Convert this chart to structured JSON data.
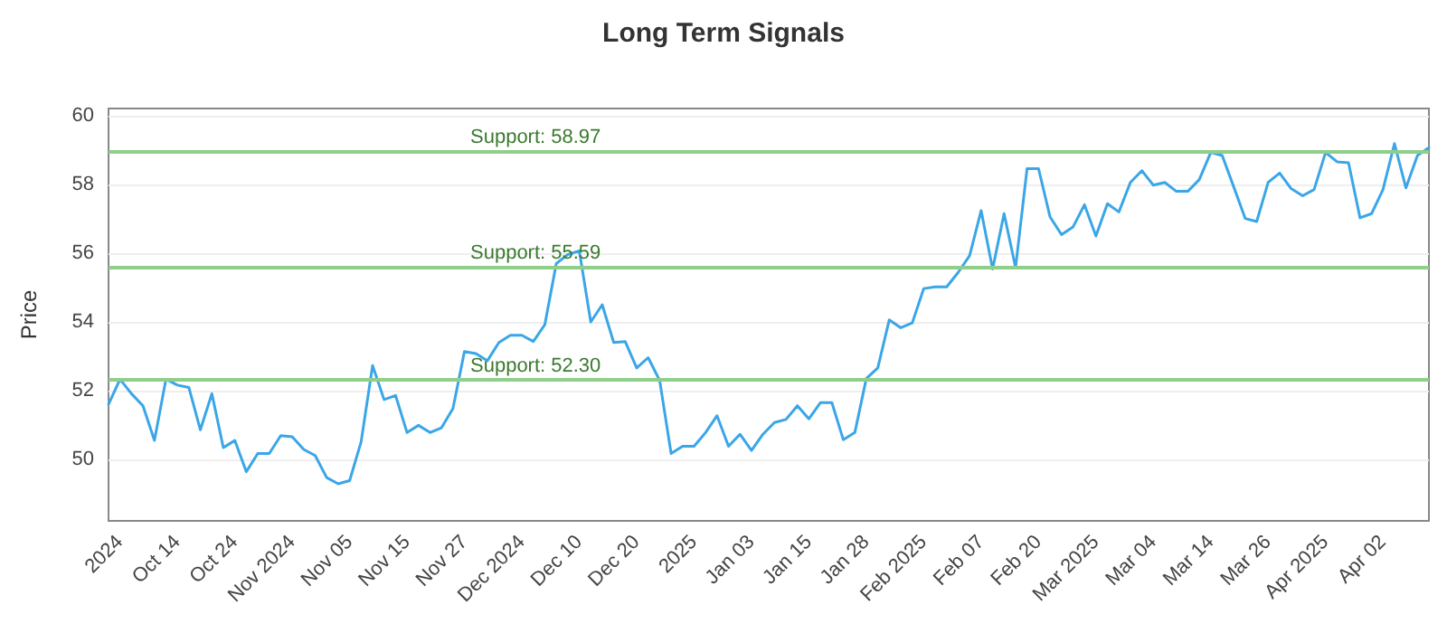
{
  "chart_data": {
    "type": "line",
    "title": "Long Term Signals",
    "ylabel": "Price",
    "categories": [
      null,
      "2024",
      null,
      null,
      null,
      null,
      "Oct 14",
      null,
      null,
      null,
      null,
      "Oct 24",
      null,
      null,
      null,
      null,
      "Nov 2024",
      null,
      null,
      null,
      null,
      "Nov 05",
      null,
      null,
      null,
      null,
      "Nov 15",
      null,
      null,
      null,
      null,
      "Nov 27",
      null,
      null,
      null,
      null,
      "Dec 2024",
      null,
      null,
      null,
      null,
      "Dec 10",
      null,
      null,
      null,
      null,
      "Dec 20",
      null,
      null,
      null,
      null,
      "2025",
      null,
      null,
      null,
      null,
      "Jan 03",
      null,
      null,
      null,
      null,
      "Jan 15",
      null,
      null,
      null,
      null,
      "Jan 28",
      null,
      null,
      null,
      null,
      "Feb 2025",
      null,
      null,
      null,
      null,
      "Feb 07",
      null,
      null,
      null,
      null,
      "Feb 20",
      null,
      null,
      null,
      null,
      "Mar 2025",
      null,
      null,
      null,
      null,
      "Mar 04",
      null,
      null,
      null,
      null,
      "Mar 14",
      null,
      null,
      null,
      null,
      "Mar 26",
      null,
      null,
      null,
      null,
      "Apr 2025",
      null,
      null,
      null,
      null,
      "Apr 02",
      null,
      null,
      null,
      null
    ],
    "series": [
      {
        "color": "#3aa6e8",
        "values": [
          51.59,
          52.32,
          51.9,
          51.55,
          50.54,
          52.32,
          52.15,
          52.08,
          50.85,
          51.9,
          50.33,
          50.54,
          49.63,
          50.16,
          50.16,
          50.68,
          50.65,
          50.28,
          50.1,
          49.46,
          49.28,
          49.37,
          50.5,
          52.72,
          51.73,
          51.85,
          50.77,
          50.98,
          50.77,
          50.91,
          51.47,
          53.13,
          53.07,
          52.86,
          53.39,
          53.6,
          53.6,
          53.42,
          53.91,
          55.69,
          55.95,
          56.06,
          53.99,
          54.49,
          53.39,
          53.42,
          52.65,
          52.95,
          52.29,
          50.16,
          50.37,
          50.37,
          50.77,
          51.26,
          50.37,
          50.72,
          50.25,
          50.72,
          51.06,
          51.15,
          51.55,
          51.17,
          51.64,
          51.64,
          50.56,
          50.77,
          52.34,
          52.65,
          54.05,
          53.82,
          53.96,
          54.96,
          55.01,
          55.01,
          55.43,
          55.92,
          57.23,
          55.53,
          57.14,
          55.57,
          58.45,
          58.45,
          57.05,
          56.53,
          56.75,
          57.4,
          56.49,
          57.43,
          57.19,
          58.05,
          58.39,
          57.97,
          58.05,
          57.79,
          57.79,
          58.13,
          58.92,
          58.83,
          57.92,
          57.0,
          56.91,
          58.05,
          58.32,
          57.87,
          57.66,
          57.84,
          58.92,
          58.65,
          58.62,
          57.02,
          57.14,
          57.84,
          59.18,
          57.89,
          58.83,
          59.06
        ]
      }
    ],
    "ylim": [
      48.2,
      60.2
    ],
    "yticks": [
      50,
      52,
      54,
      56,
      58,
      60
    ],
    "grid": "y",
    "marker": "none",
    "line_style": "solid",
    "ref_lines": [
      {
        "axis": "y",
        "value": 58.97,
        "label": "Support: 58.97",
        "color": "#8fcf8a"
      },
      {
        "axis": "y",
        "value": 55.59,
        "label": "Support: 55.59",
        "color": "#8fcf8a"
      },
      {
        "axis": "y",
        "value": 52.3,
        "label": "Support: 52.30",
        "color": "#8fcf8a"
      }
    ]
  }
}
